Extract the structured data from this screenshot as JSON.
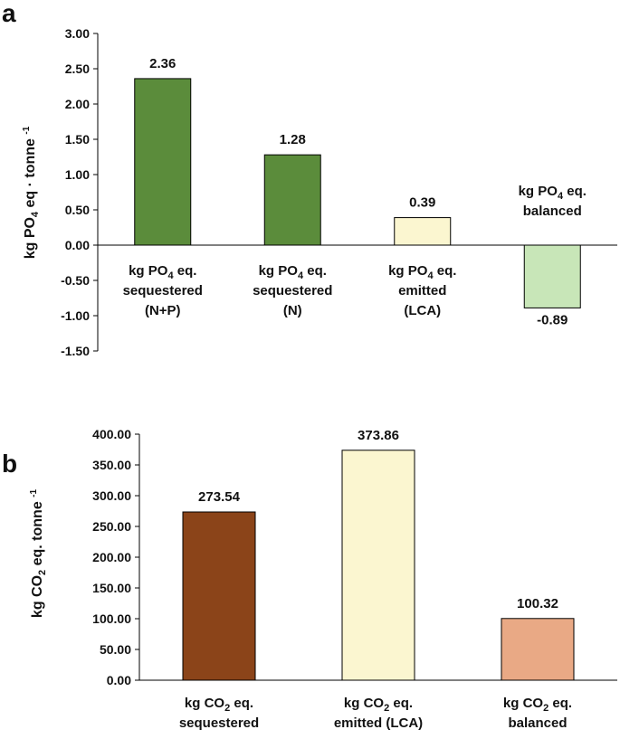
{
  "chart_data": [
    {
      "panel": "a",
      "type": "bar",
      "ylabel": "kg PO4 eq · tonne -1",
      "ylim": [
        -1.5,
        3.0
      ],
      "ticks": [
        "-1.50",
        "-1.00",
        "-0.50",
        "0.00",
        "0.50",
        "1.00",
        "1.50",
        "2.00",
        "2.50",
        "3.00"
      ],
      "categories": [
        [
          "kg PO4 eq.",
          "sequestered",
          "(N+P)"
        ],
        [
          "kg PO4 eq.",
          "sequestered",
          "(N)"
        ],
        [
          "kg PO4 eq.",
          "emitted",
          "(LCA)"
        ],
        [
          "kg PO4 eq.",
          "balanced"
        ]
      ],
      "values": [
        2.36,
        1.28,
        0.39,
        -0.89
      ],
      "value_labels": [
        "2.36",
        "1.28",
        "0.39",
        "-0.89"
      ],
      "colors": [
        "#5b8c3b",
        "#5b8c3b",
        "#fbf6d0",
        "#c8e6b8"
      ]
    },
    {
      "panel": "b",
      "type": "bar",
      "ylabel": "kg CO2 eq. tonne -1",
      "ylim": [
        0,
        400
      ],
      "ticks": [
        "0.00",
        "50.00",
        "100.00",
        "150.00",
        "200.00",
        "250.00",
        "300.00",
        "350.00",
        "400.00"
      ],
      "categories": [
        [
          "kg CO2 eq.",
          "sequestered"
        ],
        [
          "kg CO2 eq.",
          "emitted (LCA)"
        ],
        [
          "kg CO2 eq.",
          "balanced"
        ]
      ],
      "values": [
        273.54,
        373.86,
        100.32
      ],
      "value_labels": [
        "273.54",
        "373.86",
        "100.32"
      ],
      "colors": [
        "#8b4419",
        "#fbf6d0",
        "#e9a985"
      ]
    }
  ]
}
